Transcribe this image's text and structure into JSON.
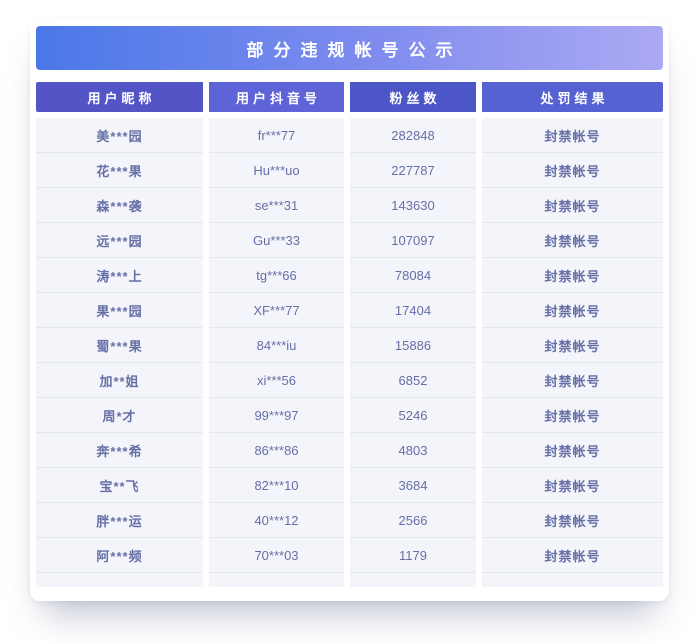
{
  "title": "部分违规帐号公示",
  "table": {
    "columns": [
      {
        "label": "用户昵称"
      },
      {
        "label": "用户抖音号"
      },
      {
        "label": "粉丝数"
      },
      {
        "label": "处罚结果"
      }
    ],
    "rows": [
      {
        "nickname": "美***园",
        "douyin_id": "fr***77",
        "fans": "282848",
        "result": "封禁帐号"
      },
      {
        "nickname": "花***果",
        "douyin_id": "Hu***uo",
        "fans": "227787",
        "result": "封禁帐号"
      },
      {
        "nickname": "森***袭",
        "douyin_id": "se***31",
        "fans": "143630",
        "result": "封禁帐号"
      },
      {
        "nickname": "远***园",
        "douyin_id": "Gu***33",
        "fans": "107097",
        "result": "封禁帐号"
      },
      {
        "nickname": "涛***上",
        "douyin_id": "tg***66",
        "fans": "78084",
        "result": "封禁帐号"
      },
      {
        "nickname": "果***园",
        "douyin_id": "XF***77",
        "fans": "17404",
        "result": "封禁帐号"
      },
      {
        "nickname": "蜀***果",
        "douyin_id": "84***iu",
        "fans": "15886",
        "result": "封禁帐号"
      },
      {
        "nickname": "加**姐",
        "douyin_id": "xi***56",
        "fans": "6852",
        "result": "封禁帐号"
      },
      {
        "nickname": "周*才",
        "douyin_id": "99***97",
        "fans": "5246",
        "result": "封禁帐号"
      },
      {
        "nickname": "奔***希",
        "douyin_id": "86***86",
        "fans": "4803",
        "result": "封禁帐号"
      },
      {
        "nickname": "宝**飞",
        "douyin_id": "82***10",
        "fans": "3684",
        "result": "封禁帐号"
      },
      {
        "nickname": "胖***运",
        "douyin_id": "40***12",
        "fans": "2566",
        "result": "封禁帐号"
      },
      {
        "nickname": "阿***频",
        "douyin_id": "70***03",
        "fans": "1179",
        "result": "封禁帐号"
      }
    ]
  },
  "colors": {
    "title_grad_start": "#4a78e8",
    "title_grad_mid": "#7d8bee",
    "title_grad_end": "#aca9f3",
    "header_c1": "#5355c7",
    "header_c2": "#5e64d7",
    "header_c3": "#4c56c6",
    "header_c4": "#5661d2",
    "header_text": "#ffffff",
    "body_text": "#666fa6",
    "cell_bg": "#f4f5fa",
    "row_border": "#e3e6ef",
    "card_bg": "#ffffff"
  }
}
